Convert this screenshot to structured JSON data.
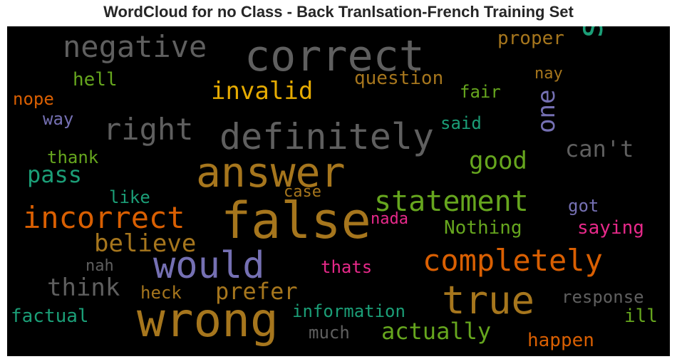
{
  "title": "WordCloud for no Class - Back Tranlsation-French Training Set",
  "chart_data": {
    "type": "wordcloud",
    "background": "#000000",
    "words": [
      {
        "text": "correct",
        "color": "#5f5f5f"
      },
      {
        "text": "negative",
        "color": "#5f5f5f"
      },
      {
        "text": "say",
        "color": "#1b9e77"
      },
      {
        "text": "proper",
        "color": "#a6761d"
      },
      {
        "text": "nay",
        "color": "#a6761d"
      },
      {
        "text": "hell",
        "color": "#66a61e"
      },
      {
        "text": "question",
        "color": "#a6761d"
      },
      {
        "text": "invalid",
        "color": "#e6ab02"
      },
      {
        "text": "fair",
        "color": "#66a61e"
      },
      {
        "text": "nope",
        "color": "#d95f02"
      },
      {
        "text": "one",
        "color": "#7570b3"
      },
      {
        "text": "way",
        "color": "#7570b3"
      },
      {
        "text": "right",
        "color": "#5f5f5f"
      },
      {
        "text": "definitely",
        "color": "#5f5f5f"
      },
      {
        "text": "said",
        "color": "#1b9e77"
      },
      {
        "text": "can't",
        "color": "#5f5f5f"
      },
      {
        "text": "thank",
        "color": "#66a61e"
      },
      {
        "text": "good",
        "color": "#66a61e"
      },
      {
        "text": "answer",
        "color": "#a6761d"
      },
      {
        "text": "pass",
        "color": "#1b9e77"
      },
      {
        "text": "like",
        "color": "#1b9e77"
      },
      {
        "text": "case",
        "color": "#a6761d"
      },
      {
        "text": "statement",
        "color": "#66a61e"
      },
      {
        "text": "got",
        "color": "#7570b3"
      },
      {
        "text": "false",
        "color": "#a6761d"
      },
      {
        "text": "incorrect",
        "color": "#d95f02"
      },
      {
        "text": "nada",
        "color": "#e7298a"
      },
      {
        "text": "Nothing",
        "color": "#66a61e"
      },
      {
        "text": "saying",
        "color": "#e7298a"
      },
      {
        "text": "believe",
        "color": "#a6761d"
      },
      {
        "text": "completely",
        "color": "#d95f02"
      },
      {
        "text": "would",
        "color": "#7570b3"
      },
      {
        "text": "nah",
        "color": "#5f5f5f"
      },
      {
        "text": "thats",
        "color": "#e7298a"
      },
      {
        "text": "think",
        "color": "#5f5f5f"
      },
      {
        "text": "prefer",
        "color": "#a6761d"
      },
      {
        "text": "true",
        "color": "#a6761d"
      },
      {
        "text": "heck",
        "color": "#a6761d"
      },
      {
        "text": "response",
        "color": "#5f5f5f"
      },
      {
        "text": "information",
        "color": "#1b9e77"
      },
      {
        "text": "factual",
        "color": "#1b9e77"
      },
      {
        "text": "wrong",
        "color": "#a6761d"
      },
      {
        "text": "ill",
        "color": "#66a61e"
      },
      {
        "text": "actually",
        "color": "#66a61e"
      },
      {
        "text": "much",
        "color": "#5f5f5f"
      },
      {
        "text": "happen",
        "color": "#d95f02"
      }
    ]
  }
}
